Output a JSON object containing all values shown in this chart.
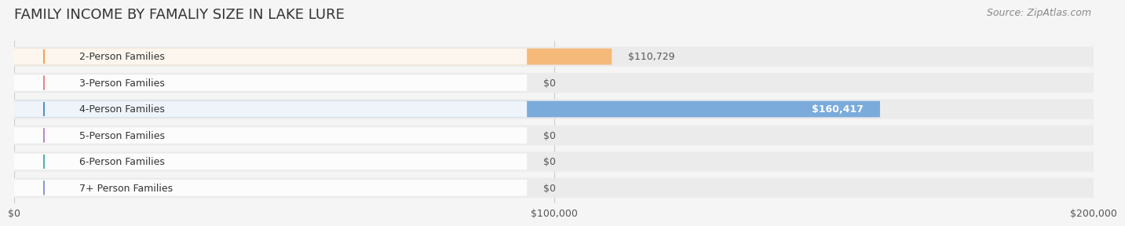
{
  "title": "FAMILY INCOME BY FAMALIY SIZE IN LAKE LURE",
  "source": "Source: ZipAtlas.com",
  "categories": [
    "2-Person Families",
    "3-Person Families",
    "4-Person Families",
    "5-Person Families",
    "6-Person Families",
    "7+ Person Families"
  ],
  "values": [
    110729,
    0,
    160417,
    0,
    0,
    0
  ],
  "bar_colors": [
    "#f5b97a",
    "#f5a0a0",
    "#7aabdb",
    "#c9a8d4",
    "#7ec8c8",
    "#a8b8e8"
  ],
  "circle_colors": [
    "#f5a050",
    "#f08080",
    "#5090c8",
    "#b888cc",
    "#50b0b0",
    "#8898d8"
  ],
  "value_labels": [
    "$110,729",
    "$0",
    "$160,417",
    "$0",
    "$0",
    "$0"
  ],
  "xlim": [
    0,
    200000
  ],
  "xtick_labels": [
    "$0",
    "$100,000",
    "$200,000"
  ],
  "xtick_values": [
    0,
    100000,
    200000
  ],
  "background_color": "#f5f5f5",
  "bar_background_color": "#ebebeb",
  "title_fontsize": 13,
  "label_fontsize": 9,
  "tick_fontsize": 9,
  "source_fontsize": 9
}
